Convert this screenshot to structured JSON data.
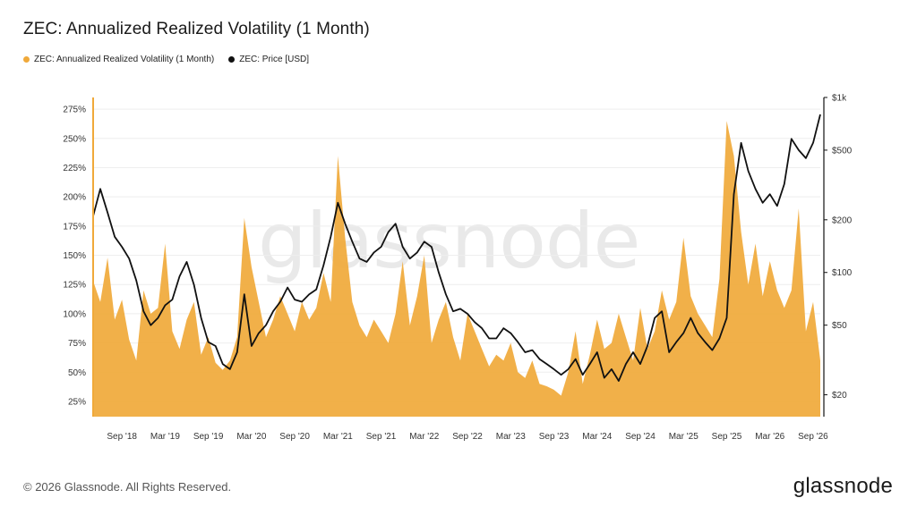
{
  "title": "ZEC: Annualized Realized Volatility (1 Month)",
  "legend": [
    {
      "label": "ZEC: Annualized Realized Volatility (1 Month)",
      "color": "#f0a93a"
    },
    {
      "label": "ZEC: Price [USD]",
      "color": "#111111"
    }
  ],
  "watermark": "glassnode",
  "footer": "© 2026 Glassnode. All Rights Reserved.",
  "brand": "glassnode",
  "chart_data": {
    "type": "area",
    "x_tick_labels": [
      "Sep '18",
      "Mar '19",
      "Sep '19",
      "Mar '20",
      "Sep '20",
      "Mar '21",
      "Sep '21",
      "Mar '22",
      "Sep '22",
      "Mar '23",
      "Sep '23",
      "Mar '24",
      "Sep '24",
      "Mar '25",
      "Sep '25",
      "Mar '26",
      "Sep '26"
    ],
    "x_ticks": [
      "2018-09",
      "2019-03",
      "2019-09",
      "2020-03",
      "2020-09",
      "2021-03",
      "2021-09",
      "2022-03",
      "2022-09",
      "2023-03",
      "2023-09",
      "2024-03",
      "2024-09",
      "2025-03",
      "2025-09",
      "2026-03",
      "2026-09"
    ],
    "x_range": [
      "2018-05",
      "2026-10"
    ],
    "grid": true,
    "legend_position": "top-left",
    "y_left": {
      "tick_labels": [
        "25%",
        "50%",
        "75%",
        "100%",
        "125%",
        "150%",
        "175%",
        "200%",
        "225%",
        "250%",
        "275%"
      ],
      "ticks": [
        25,
        50,
        75,
        100,
        125,
        150,
        175,
        200,
        225,
        250,
        275
      ],
      "range": [
        12,
        285
      ]
    },
    "y_right": {
      "scale": "log",
      "tick_labels": [
        "$20",
        "$50",
        "$100",
        "$200",
        "$500",
        "$1k"
      ],
      "ticks": [
        20,
        50,
        100,
        200,
        500,
        1000
      ],
      "range": [
        15,
        1000
      ]
    },
    "series": [
      {
        "name": "ZEC: Annualized Realized Volatility (1 Month)",
        "axis": "left",
        "color": "#f0a93a",
        "x": [
          "2018-05",
          "2018-06",
          "2018-07",
          "2018-08",
          "2018-09",
          "2018-10",
          "2018-11",
          "2018-12",
          "2019-01",
          "2019-02",
          "2019-03",
          "2019-04",
          "2019-05",
          "2019-06",
          "2019-07",
          "2019-08",
          "2019-09",
          "2019-10",
          "2019-11",
          "2019-12",
          "2020-01",
          "2020-02",
          "2020-03",
          "2020-04",
          "2020-05",
          "2020-06",
          "2020-07",
          "2020-08",
          "2020-09",
          "2020-10",
          "2020-11",
          "2020-12",
          "2021-01",
          "2021-02",
          "2021-03",
          "2021-04",
          "2021-05",
          "2021-06",
          "2021-07",
          "2021-08",
          "2021-09",
          "2021-10",
          "2021-11",
          "2021-12",
          "2022-01",
          "2022-02",
          "2022-03",
          "2022-04",
          "2022-05",
          "2022-06",
          "2022-07",
          "2022-08",
          "2022-09",
          "2022-10",
          "2022-11",
          "2022-12",
          "2023-01",
          "2023-02",
          "2023-03",
          "2023-04",
          "2023-05",
          "2023-06",
          "2023-07",
          "2023-08",
          "2023-09",
          "2023-10",
          "2023-11",
          "2023-12",
          "2024-01",
          "2024-02",
          "2024-03",
          "2024-04",
          "2024-05",
          "2024-06",
          "2024-07",
          "2024-08",
          "2024-09",
          "2024-10",
          "2024-11",
          "2024-12",
          "2025-01",
          "2025-02",
          "2025-03",
          "2025-04",
          "2025-05",
          "2025-06",
          "2025-07",
          "2025-08",
          "2025-09",
          "2025-10",
          "2025-11",
          "2025-12",
          "2026-01",
          "2026-02",
          "2026-03",
          "2026-04",
          "2026-05",
          "2026-06",
          "2026-07",
          "2026-08",
          "2026-09",
          "2026-10"
        ],
        "values": [
          128,
          110,
          148,
          95,
          112,
          78,
          60,
          120,
          100,
          105,
          160,
          85,
          70,
          95,
          110,
          65,
          80,
          58,
          52,
          60,
          80,
          182,
          140,
          110,
          80,
          95,
          115,
          100,
          85,
          110,
          95,
          105,
          135,
          110,
          235,
          165,
          110,
          90,
          80,
          95,
          85,
          75,
          100,
          145,
          90,
          115,
          150,
          75,
          95,
          110,
          80,
          60,
          100,
          85,
          70,
          55,
          65,
          60,
          75,
          50,
          45,
          60,
          40,
          38,
          35,
          30,
          50,
          85,
          40,
          65,
          95,
          70,
          75,
          100,
          80,
          60,
          105,
          70,
          85,
          120,
          95,
          110,
          165,
          115,
          100,
          90,
          80,
          130,
          265,
          235,
          170,
          125,
          160,
          115,
          145,
          120,
          105,
          120,
          190,
          85,
          110,
          60
        ]
      },
      {
        "name": "ZEC: Price [USD]",
        "axis": "right",
        "color": "#111111",
        "x": [
          "2018-05",
          "2018-06",
          "2018-07",
          "2018-08",
          "2018-09",
          "2018-10",
          "2018-11",
          "2018-12",
          "2019-01",
          "2019-02",
          "2019-03",
          "2019-04",
          "2019-05",
          "2019-06",
          "2019-07",
          "2019-08",
          "2019-09",
          "2019-10",
          "2019-11",
          "2019-12",
          "2020-01",
          "2020-02",
          "2020-03",
          "2020-04",
          "2020-05",
          "2020-06",
          "2020-07",
          "2020-08",
          "2020-09",
          "2020-10",
          "2020-11",
          "2020-12",
          "2021-01",
          "2021-02",
          "2021-03",
          "2021-04",
          "2021-05",
          "2021-06",
          "2021-07",
          "2021-08",
          "2021-09",
          "2021-10",
          "2021-11",
          "2021-12",
          "2022-01",
          "2022-02",
          "2022-03",
          "2022-04",
          "2022-05",
          "2022-06",
          "2022-07",
          "2022-08",
          "2022-09",
          "2022-10",
          "2022-11",
          "2022-12",
          "2023-01",
          "2023-02",
          "2023-03",
          "2023-04",
          "2023-05",
          "2023-06",
          "2023-07",
          "2023-08",
          "2023-09",
          "2023-10",
          "2023-11",
          "2023-12",
          "2024-01",
          "2024-02",
          "2024-03",
          "2024-04",
          "2024-05",
          "2024-06",
          "2024-07",
          "2024-08",
          "2024-09",
          "2024-10",
          "2024-11",
          "2024-12",
          "2025-01",
          "2025-02",
          "2025-03",
          "2025-04",
          "2025-05",
          "2025-06",
          "2025-07",
          "2025-08",
          "2025-09",
          "2025-10",
          "2025-11",
          "2025-12",
          "2026-01",
          "2026-02",
          "2026-03",
          "2026-04",
          "2026-05",
          "2026-06",
          "2026-07",
          "2026-08",
          "2026-09",
          "2026-10"
        ],
        "values": [
          210,
          300,
          220,
          160,
          140,
          120,
          90,
          60,
          50,
          55,
          65,
          70,
          95,
          115,
          85,
          55,
          40,
          38,
          30,
          28,
          35,
          75,
          38,
          45,
          50,
          60,
          68,
          82,
          70,
          68,
          75,
          80,
          110,
          160,
          250,
          190,
          150,
          120,
          115,
          130,
          140,
          170,
          190,
          140,
          120,
          130,
          150,
          140,
          100,
          75,
          60,
          62,
          58,
          52,
          48,
          42,
          42,
          48,
          45,
          40,
          35,
          36,
          32,
          30,
          28,
          26,
          28,
          32,
          26,
          30,
          35,
          25,
          28,
          24,
          30,
          35,
          30,
          38,
          55,
          60,
          35,
          40,
          45,
          55,
          45,
          40,
          36,
          42,
          55,
          280,
          550,
          380,
          300,
          250,
          280,
          240,
          320,
          580,
          500,
          450,
          550,
          800
        ]
      }
    ]
  }
}
